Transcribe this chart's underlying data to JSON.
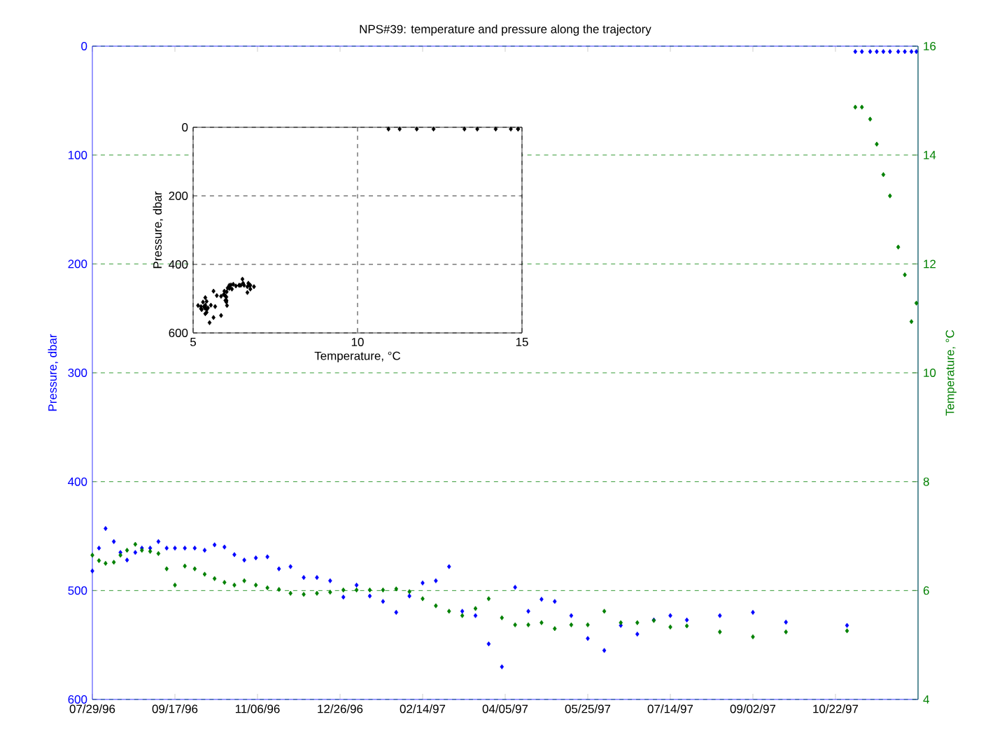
{
  "chart_data": [
    {
      "type": "scatter",
      "title": "NPS#39: temperature and pressure along the trajectory",
      "ylabel": "Pressure, dbar",
      "y2label": "Temperature, °C",
      "x": [
        "1996-07-29",
        "1996-08-02",
        "1996-08-06",
        "1996-08-11",
        "1996-08-15",
        "1996-08-19",
        "1996-08-24",
        "1996-08-28",
        "1996-09-02",
        "1996-09-07",
        "1996-09-12",
        "1996-09-17",
        "1996-09-23",
        "1996-09-29",
        "1996-10-05",
        "1996-10-11",
        "1996-10-17",
        "1996-10-23",
        "1996-10-29",
        "1996-11-05",
        "1996-11-12",
        "1996-11-19",
        "1996-11-26",
        "1996-12-04",
        "1996-12-12",
        "1996-12-20",
        "1996-12-28",
        "1997-01-05",
        "1997-01-13",
        "1997-01-21",
        "1997-01-29",
        "1997-02-06",
        "1997-02-14",
        "1997-02-22",
        "1997-03-02",
        "1997-03-10",
        "1997-03-18",
        "1997-03-26",
        "1997-04-03",
        "1997-04-11",
        "1997-04-19",
        "1997-04-27",
        "1997-05-05",
        "1997-05-15",
        "1997-05-25",
        "1997-06-04",
        "1997-06-14",
        "1997-06-24",
        "1997-07-04",
        "1997-07-14",
        "1997-07-24",
        "1997-08-13",
        "1997-09-02",
        "1997-09-22",
        "1997-10-29",
        "1997-11-03",
        "1997-11-07",
        "1997-11-12",
        "1997-11-16",
        "1997-11-20",
        "1997-11-24",
        "1997-11-29",
        "1997-12-03",
        "1997-12-07",
        "1997-12-10"
      ],
      "series": [
        {
          "color": "#0000ff",
          "values": [
            482,
            461,
            443,
            455,
            465,
            472,
            465,
            461,
            461,
            455,
            461,
            461,
            461,
            461,
            463,
            458,
            460,
            467,
            472,
            470,
            469,
            480,
            478,
            488,
            488,
            491,
            506,
            495,
            505,
            510,
            520,
            505,
            493,
            491,
            478,
            519,
            523,
            549,
            570,
            497,
            519,
            508,
            510,
            523,
            544,
            555,
            532,
            540,
            527,
            523,
            527,
            523,
            520,
            529,
            532,
            5,
            5,
            5,
            5,
            5,
            5,
            5,
            5,
            5,
            5
          ]
        },
        {
          "color": "#008000",
          "axis": "y2",
          "values": [
            6.65,
            6.55,
            6.5,
            6.52,
            6.65,
            6.74,
            6.85,
            6.74,
            6.72,
            6.68,
            6.4,
            6.1,
            6.45,
            6.4,
            6.3,
            6.22,
            6.15,
            6.1,
            6.18,
            6.1,
            6.05,
            6.02,
            5.95,
            5.93,
            5.95,
            5.97,
            6.01,
            6.01,
            6.01,
            6.01,
            6.03,
            5.98,
            5.85,
            5.72,
            5.62,
            5.54,
            5.67,
            5.85,
            5.5,
            5.37,
            5.37,
            5.41,
            5.3,
            5.37,
            5.37,
            5.62,
            5.41,
            5.41,
            5.45,
            5.33,
            5.35,
            5.24,
            5.15,
            5.24,
            5.26,
            14.88,
            14.88,
            14.66,
            14.2,
            13.64,
            13.25,
            12.31,
            11.8,
            10.94,
            11.28
          ]
        }
      ],
      "xlim": [
        "1996-07-29",
        "1997-12-11"
      ],
      "xticks": [
        {
          "value": "1996-07-29",
          "label": "07/29/96"
        },
        {
          "value": "1996-09-17",
          "label": "09/17/96"
        },
        {
          "value": "1996-11-06",
          "label": "11/06/96"
        },
        {
          "value": "1996-12-26",
          "label": "12/26/96"
        },
        {
          "value": "1997-02-14",
          "label": "02/14/97"
        },
        {
          "value": "1997-04-05",
          "label": "04/05/97"
        },
        {
          "value": "1997-05-25",
          "label": "05/25/97"
        },
        {
          "value": "1997-07-14",
          "label": "07/14/97"
        },
        {
          "value": "1997-09-02",
          "label": "09/02/97"
        },
        {
          "value": "1997-10-22",
          "label": "10/22/97"
        }
      ],
      "ylim": [
        600,
        0
      ],
      "yticks": [
        0,
        100,
        200,
        300,
        400,
        500,
        600
      ],
      "y2lim": [
        4,
        16
      ],
      "y2ticks": [
        4,
        6,
        8,
        10,
        12,
        14,
        16
      ],
      "grid": "y",
      "marker": "diamond"
    },
    {
      "type": "scatter",
      "xlabel": "Temperature, °C",
      "ylabel": "Pressure, dbar",
      "color": "#000000",
      "x": [
        6.65,
        6.55,
        6.5,
        6.52,
        6.65,
        6.74,
        6.85,
        6.74,
        6.72,
        6.68,
        6.4,
        6.1,
        6.45,
        6.4,
        6.3,
        6.22,
        6.15,
        6.1,
        6.18,
        6.1,
        6.05,
        6.02,
        5.95,
        5.93,
        5.95,
        5.97,
        6.01,
        6.01,
        6.01,
        6.01,
        6.03,
        5.98,
        5.85,
        5.72,
        5.62,
        5.54,
        5.67,
        5.85,
        5.5,
        5.37,
        5.37,
        5.41,
        5.3,
        5.37,
        5.37,
        5.62,
        5.41,
        5.41,
        5.45,
        5.33,
        5.35,
        5.24,
        5.15,
        5.24,
        5.26,
        14.88,
        14.88,
        14.66,
        14.2,
        13.64,
        13.25,
        12.31,
        11.8,
        10.94,
        11.28
      ],
      "values": [
        482,
        461,
        443,
        455,
        465,
        472,
        465,
        461,
        461,
        455,
        461,
        461,
        461,
        461,
        463,
        458,
        460,
        467,
        472,
        470,
        469,
        480,
        478,
        488,
        488,
        491,
        506,
        495,
        505,
        510,
        520,
        505,
        493,
        491,
        478,
        519,
        523,
        549,
        570,
        497,
        519,
        508,
        510,
        523,
        544,
        555,
        532,
        540,
        527,
        523,
        527,
        523,
        520,
        529,
        532,
        5,
        5,
        5,
        5,
        5,
        5,
        5,
        5,
        5,
        5
      ],
      "xlim": [
        5,
        15
      ],
      "xticks": [
        5,
        10,
        15
      ],
      "ylim": [
        600,
        0
      ],
      "yticks": [
        0,
        200,
        400,
        600
      ],
      "grid": true,
      "marker": "diamond"
    }
  ]
}
